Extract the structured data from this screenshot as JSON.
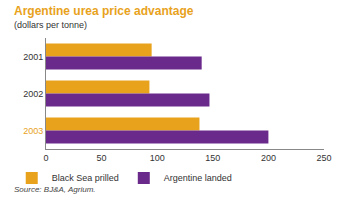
{
  "chart_data": {
    "type": "bar",
    "orientation": "horizontal",
    "title": "Argentine urea price advantage",
    "subtitle": "(dollars per tonne)",
    "categories": [
      "2001",
      "2002",
      "2003"
    ],
    "series": [
      {
        "name": "Black Sea prilled",
        "color": "#e8a21c",
        "values": [
          95,
          93,
          138
        ]
      },
      {
        "name": "Argentine landed",
        "color": "#6a2a8c",
        "values": [
          140,
          147,
          200
        ]
      }
    ],
    "xlim": [
      0,
      250
    ],
    "xticks": [
      0,
      50,
      100,
      150,
      200,
      250
    ],
    "grid": false,
    "legend": "bottom left",
    "source": "Source: BJ&A, Agrium."
  }
}
